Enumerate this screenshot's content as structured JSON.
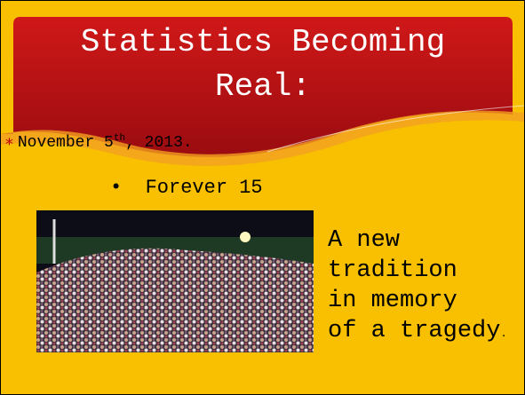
{
  "slide": {
    "title": "Statistics Becoming Real:",
    "bullet": {
      "text": "November 5",
      "sup": "th",
      "rest": ", 2013."
    },
    "sub_bullet": "Forever 15",
    "caption_lines": [
      "A new",
      "tradition",
      "in memory",
      "of a tragedy"
    ],
    "caption_end": "."
  }
}
